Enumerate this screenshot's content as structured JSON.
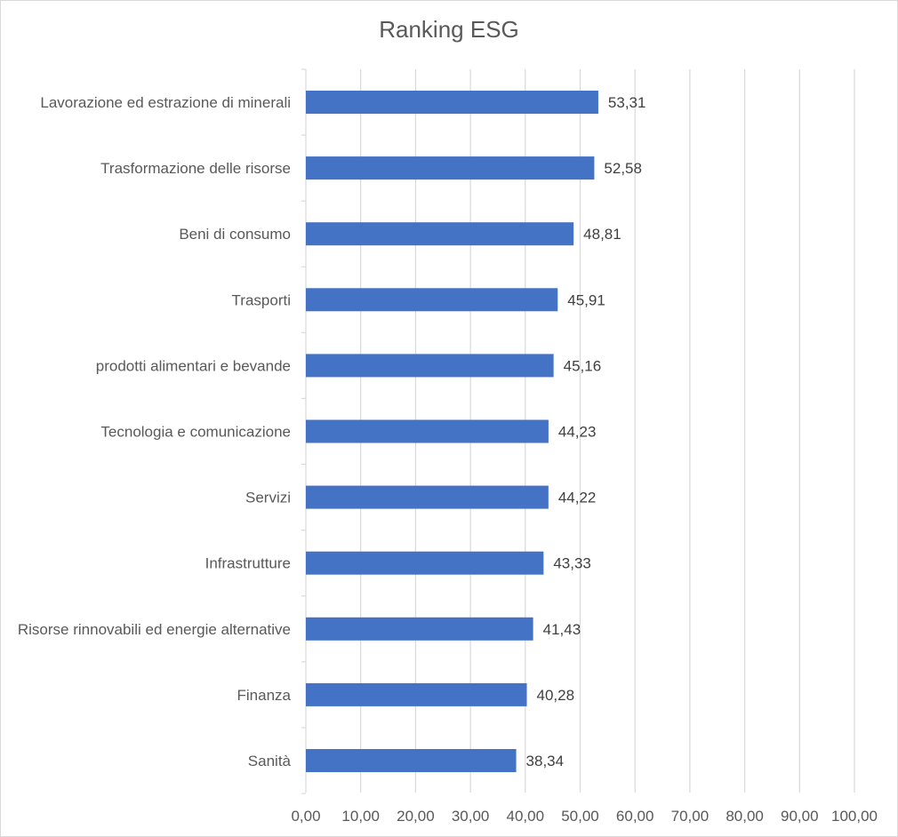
{
  "chart_data": {
    "type": "bar",
    "orientation": "horizontal",
    "title": "Ranking ESG",
    "categories": [
      "Lavorazione ed estrazione di minerali",
      "Trasformazione delle risorse",
      "Beni di consumo",
      "Trasporti",
      "prodotti alimentari e bevande",
      "Tecnologia e comunicazione",
      "Servizi",
      "Infrastrutture",
      "Risorse rinnovabili ed energie alternative",
      "Finanza",
      "Sanità"
    ],
    "values": [
      53.31,
      52.58,
      48.81,
      45.91,
      45.16,
      44.23,
      44.22,
      43.33,
      41.43,
      40.28,
      38.34
    ],
    "value_labels": [
      "53,31",
      "52,58",
      "48,81",
      "45,91",
      "45,16",
      "44,23",
      "44,22",
      "43,33",
      "41,43",
      "40,28",
      "38,34"
    ],
    "xlim": [
      0,
      100
    ],
    "x_ticks": [
      0,
      10,
      20,
      30,
      40,
      50,
      60,
      70,
      80,
      90,
      100
    ],
    "x_tick_labels": [
      "0,00",
      "10,00",
      "20,00",
      "30,00",
      "40,00",
      "50,00",
      "60,00",
      "70,00",
      "80,00",
      "90,00",
      "100,00"
    ],
    "xlabel": "",
    "ylabel": "",
    "grid": "vertical",
    "legend": "none",
    "colors": {
      "bar": "#4472c4",
      "grid": "#d9d9d9",
      "text": "#595959"
    }
  }
}
